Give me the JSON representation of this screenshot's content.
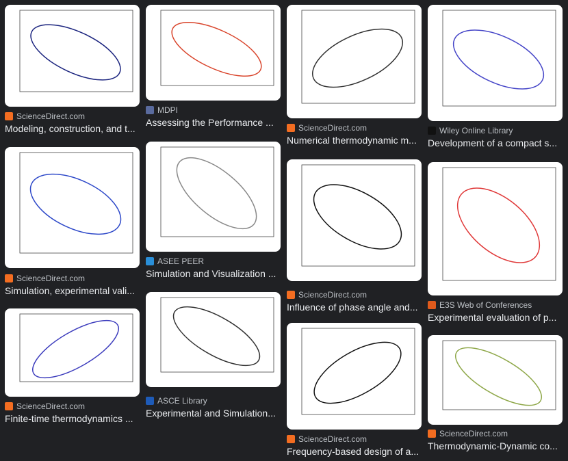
{
  "results": [
    {
      "source": "ScienceDirect.com",
      "title": "Modeling, construction, and t..."
    },
    {
      "source": "ScienceDirect.com",
      "title": "Simulation, experimental vali..."
    },
    {
      "source": "ScienceDirect.com",
      "title": "Finite-time thermodynamics ..."
    },
    {
      "source": "MDPI",
      "title": "Assessing the Performance ..."
    },
    {
      "source": "ASEE PEER",
      "title": "Simulation and Visualization ..."
    },
    {
      "source": "ASCE Library",
      "title": "Experimental and Simulation..."
    },
    {
      "source": "ScienceDirect.com",
      "title": "Numerical thermodynamic m..."
    },
    {
      "source": "ScienceDirect.com",
      "title": "Influence of phase angle and..."
    },
    {
      "source": "ScienceDirect.com",
      "title": "Frequency-based design of a..."
    },
    {
      "source": "Wiley Online Library",
      "title": "Development of a compact s..."
    },
    {
      "source": "E3S Web of Conferences",
      "title": "Experimental evaluation of p..."
    },
    {
      "source": "ScienceDirect.com",
      "title": "Thermodynamic-Dynamic co..."
    }
  ]
}
